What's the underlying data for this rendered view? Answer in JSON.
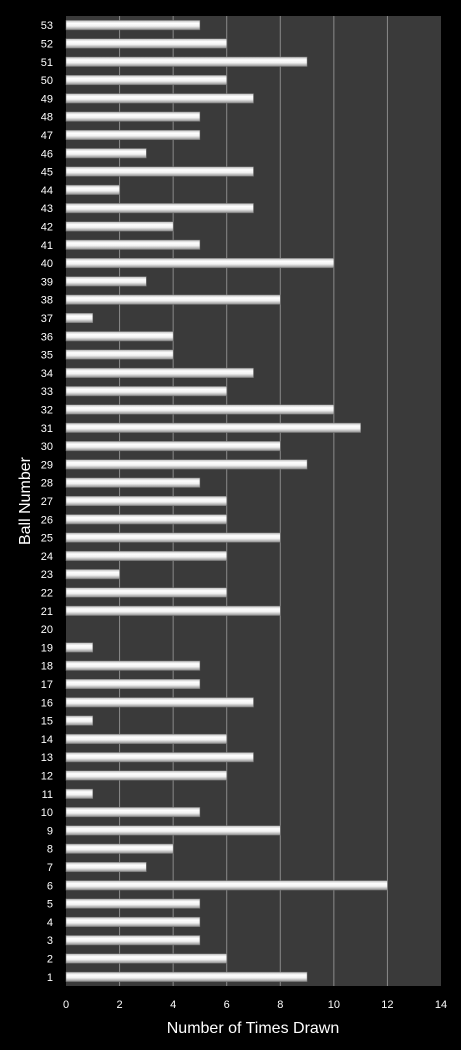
{
  "chart_data": {
    "type": "bar",
    "orientation": "horizontal",
    "title": "",
    "xlabel": "Number of Times Drawn",
    "ylabel": "Ball Number",
    "xlim": [
      0,
      14
    ],
    "x_ticks": [
      0,
      2,
      4,
      6,
      8,
      10,
      12,
      14
    ],
    "grid": true,
    "legend": "none",
    "categories": [
      "1",
      "2",
      "3",
      "4",
      "5",
      "6",
      "7",
      "8",
      "9",
      "10",
      "11",
      "12",
      "13",
      "14",
      "15",
      "16",
      "17",
      "18",
      "19",
      "20",
      "21",
      "22",
      "23",
      "24",
      "25",
      "26",
      "27",
      "28",
      "29",
      "30",
      "31",
      "32",
      "33",
      "34",
      "35",
      "36",
      "37",
      "38",
      "39",
      "40",
      "41",
      "42",
      "43",
      "44",
      "45",
      "46",
      "47",
      "48",
      "49",
      "50",
      "51",
      "52",
      "53"
    ],
    "values": [
      9,
      6,
      5,
      5,
      5,
      12,
      3,
      4,
      8,
      5,
      1,
      6,
      7,
      6,
      1,
      7,
      5,
      5,
      1,
      0,
      8,
      6,
      2,
      6,
      8,
      6,
      6,
      5,
      9,
      8,
      11,
      10,
      6,
      7,
      4,
      4,
      1,
      8,
      3,
      10,
      5,
      4,
      7,
      2,
      7,
      3,
      5,
      5,
      7,
      6,
      9,
      6,
      5
    ],
    "colors": {
      "background": "#000000",
      "plot_area": "#3a3a3a",
      "bar": "#ffffff",
      "bar_shade": "#9a9a9a",
      "grid": "#8a8a8a",
      "text": "#ffffff"
    }
  }
}
